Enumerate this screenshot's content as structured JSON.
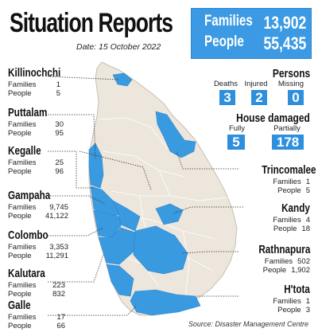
{
  "header": {
    "title": "Situation Reports",
    "date": "Date: 15 October 2022"
  },
  "totals": {
    "families_label": "Families",
    "families_value": "13,902",
    "people_label": "People",
    "people_value": "55,435"
  },
  "persons": {
    "title": "Persons",
    "deaths_label": "Deaths",
    "injured_label": "Injured",
    "missing_label": "Missing",
    "deaths": "3",
    "injured": "2",
    "missing": "0"
  },
  "houses": {
    "title": "House damaged",
    "fully_label": "Fully",
    "partially_label": "Partially",
    "fully": "5",
    "partially": "178"
  },
  "districts": {
    "killinochchi": {
      "name": "Killinochchi",
      "families_label": "Families",
      "families": "1",
      "people_label": "People",
      "people": "5"
    },
    "puttalam": {
      "name": "Puttalam",
      "families_label": "Families",
      "families": "30",
      "people_label": "People",
      "people": "95"
    },
    "kegalle": {
      "name": "Kegalle",
      "families_label": "Families",
      "families": "25",
      "people_label": "People",
      "people": "96"
    },
    "gampaha": {
      "name": "Gampaha",
      "families_label": "Families",
      "families": "9,745",
      "people_label": "People",
      "people": "41,122"
    },
    "colombo": {
      "name": "Colombo",
      "families_label": "Families",
      "families": "3,353",
      "people_label": "People",
      "people": "11,291"
    },
    "kalutara": {
      "name": "Kalutara",
      "families_label": "Families",
      "families": "223",
      "people_label": "People",
      "people": "832"
    },
    "galle": {
      "name": "Galle",
      "families_label": "Families",
      "families": "17",
      "people_label": "People",
      "people": "66"
    },
    "trincomalee": {
      "name": "Trincomalee",
      "families_label": "Families",
      "families": "1",
      "people_label": "People",
      "people": "5"
    },
    "kandy": {
      "name": "Kandy",
      "families_label": "Families",
      "families": "4",
      "people_label": "People",
      "people": "18"
    },
    "rathnapura": {
      "name": "Rathnapura",
      "families_label": "Families",
      "families": "502",
      "people_label": "People",
      "people": "1,902"
    },
    "htota": {
      "name": "H'tota",
      "families_label": "Families",
      "families": "1",
      "people_label": "People",
      "people": "3"
    }
  },
  "source": "Source: Disaster Management Centre",
  "colors": {
    "accent_blue": "#3b9ae3",
    "map_land": "#ede6dc",
    "affected_blue": "#3a9ae0",
    "box_blue": "#2f8fdc"
  }
}
